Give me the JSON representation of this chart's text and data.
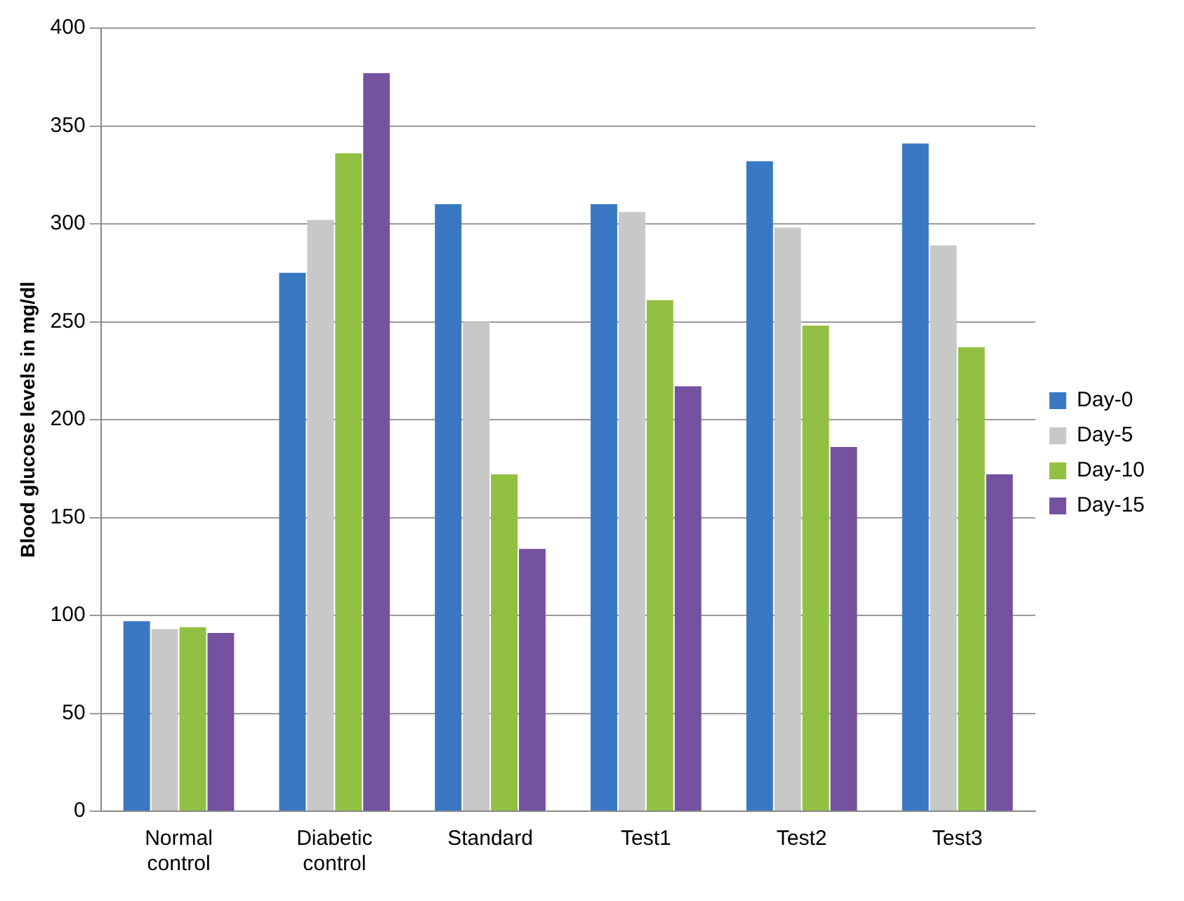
{
  "chart_data": {
    "type": "bar",
    "ylabel": "Blood glucose levels in mg/dl",
    "categories": [
      "Normal control",
      "Diabetic control",
      "Standard",
      "Test1",
      "Test2",
      "Test3"
    ],
    "series": [
      {
        "name": "Day-0",
        "color": "#3a78c4",
        "values": [
          97,
          275,
          310,
          310,
          332,
          341
        ]
      },
      {
        "name": "Day-5",
        "color": "#c8c8c8",
        "values": [
          93,
          302,
          250,
          306,
          298,
          289
        ]
      },
      {
        "name": "Day-10",
        "color": "#92c043",
        "values": [
          94,
          336,
          172,
          261,
          248,
          237
        ]
      },
      {
        "name": "Day-15",
        "color": "#7452a0",
        "values": [
          91,
          377,
          134,
          217,
          186,
          172
        ]
      }
    ],
    "ylim": [
      0,
      400
    ],
    "yticks": [
      0,
      50,
      100,
      150,
      200,
      250,
      300,
      350,
      400
    ],
    "grid": "y",
    "legend": "right"
  }
}
